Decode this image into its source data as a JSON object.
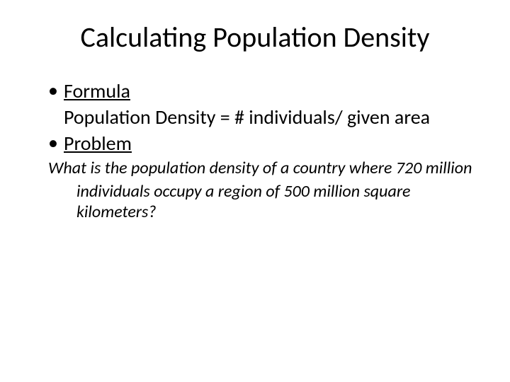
{
  "slide": {
    "title": "Calculating Population Density",
    "bullets": [
      {
        "label": "Formula",
        "continuation": "Population Density = # individuals/ given area"
      },
      {
        "label": "Problem"
      }
    ],
    "problem_line1": "What is the population density of a country where 720 million",
    "problem_line2": "individuals occupy a region of 500 million square kilometers?"
  },
  "style": {
    "background_color": "#ffffff",
    "text_color": "#000000",
    "title_fontsize": 40,
    "bullet_fontsize": 28,
    "problem_fontsize": 24,
    "font_family": "Calibri"
  }
}
